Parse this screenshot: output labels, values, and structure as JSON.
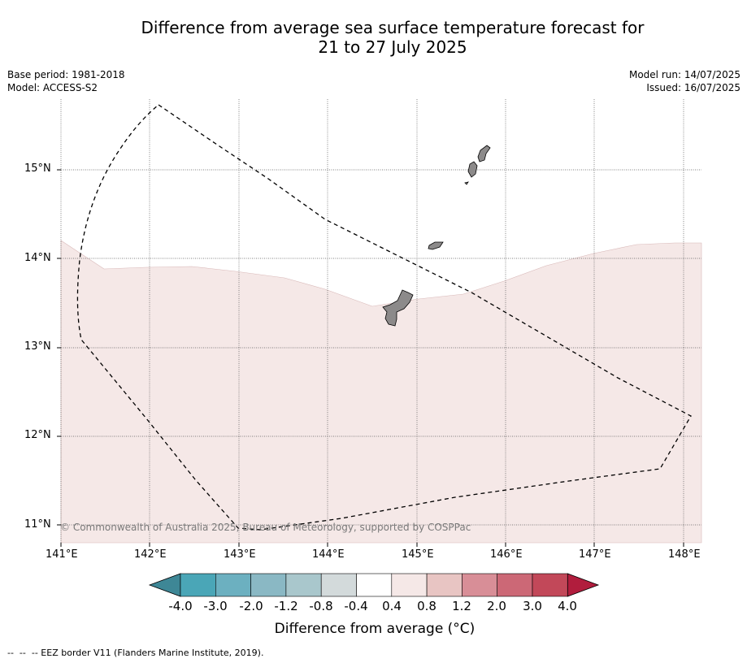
{
  "title": {
    "line1": "Difference from average sea surface temperature forecast for",
    "line2": "21 to 27 July 2025"
  },
  "meta_left": {
    "base_period": "Base period: 1981-2018",
    "model": "Model: ACCESS-S2"
  },
  "meta_right": {
    "model_run": "Model run: 14/07/2025",
    "issued": "Issued: 16/07/2025"
  },
  "map": {
    "lon_labels": [
      "141°E",
      "142°E",
      "143°E",
      "144°E",
      "145°E",
      "146°E",
      "147°E",
      "148°E"
    ],
    "lat_labels": [
      "15°N",
      "14°N",
      "13°N",
      "12°N",
      "11°N"
    ],
    "copyright": "© Commonwealth of Australia 2025, Bureau of Meteorology, supported by COSPPac",
    "anomaly_fill_color": "#f5e8e7",
    "land_color": "#8c8a8a"
  },
  "colorbar": {
    "labels": [
      "-4.0",
      "-3.0",
      "-2.0",
      "-1.2",
      "-0.8",
      "-0.4",
      "0.4",
      "0.8",
      "1.2",
      "2.0",
      "3.0",
      "4.0"
    ],
    "colors": [
      "#3e8796",
      "#4aa6b7",
      "#6cb0c0",
      "#8ab8c4",
      "#a9c7cc",
      "#d3dadb",
      "#ffffff",
      "#f5e8e7",
      "#e8c5c3",
      "#d88e97",
      "#cc6876",
      "#c24859",
      "#b11d3d"
    ],
    "title": "Difference from average (°C)"
  },
  "footer": "--  --  -- EEZ border V11 (Flanders Marine Institute, 2019)."
}
